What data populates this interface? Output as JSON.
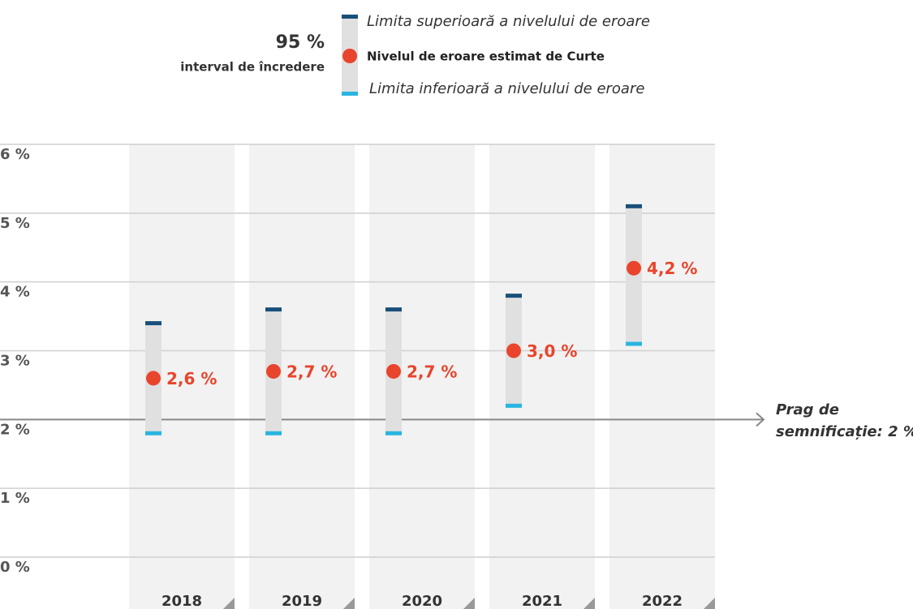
{
  "chart_data": {
    "type": "interval",
    "legend_title": "95 %",
    "legend_subtitle": "interval de încredere",
    "categories": [
      "2018",
      "2019",
      "2020",
      "2021",
      "2022"
    ],
    "series": [
      {
        "name": "Limita superioară a nivelului de eroare",
        "color": "#1a4f7a",
        "values": [
          3.4,
          3.6,
          3.6,
          3.8,
          5.1
        ]
      },
      {
        "name": "Nivelul de eroare estimat de Curte",
        "color": "#e8452c",
        "values": [
          2.6,
          2.7,
          2.7,
          3.0,
          4.2
        ],
        "value_labels": [
          "2,6 %",
          "2,7 %",
          "2,7 %",
          "3,0 %",
          "4,2 %"
        ]
      },
      {
        "name": "Limita inferioară a nivelului de eroare",
        "color": "#29b5e0",
        "values": [
          1.8,
          1.8,
          1.8,
          2.2,
          3.1
        ]
      }
    ],
    "ylim": [
      0,
      6
    ],
    "yticks": [
      {
        "value": 0,
        "label": "0 %"
      },
      {
        "value": 1,
        "label": "1 %"
      },
      {
        "value": 2,
        "label": "2 %"
      },
      {
        "value": 3,
        "label": "3 %"
      },
      {
        "value": 4,
        "label": "4 %"
      },
      {
        "value": 5,
        "label": "5 %"
      },
      {
        "value": 6,
        "label": "6 %"
      }
    ],
    "grid": true,
    "threshold": {
      "value": 2,
      "label_lines": [
        "Prag de",
        "semnificație: 2 %"
      ]
    }
  }
}
